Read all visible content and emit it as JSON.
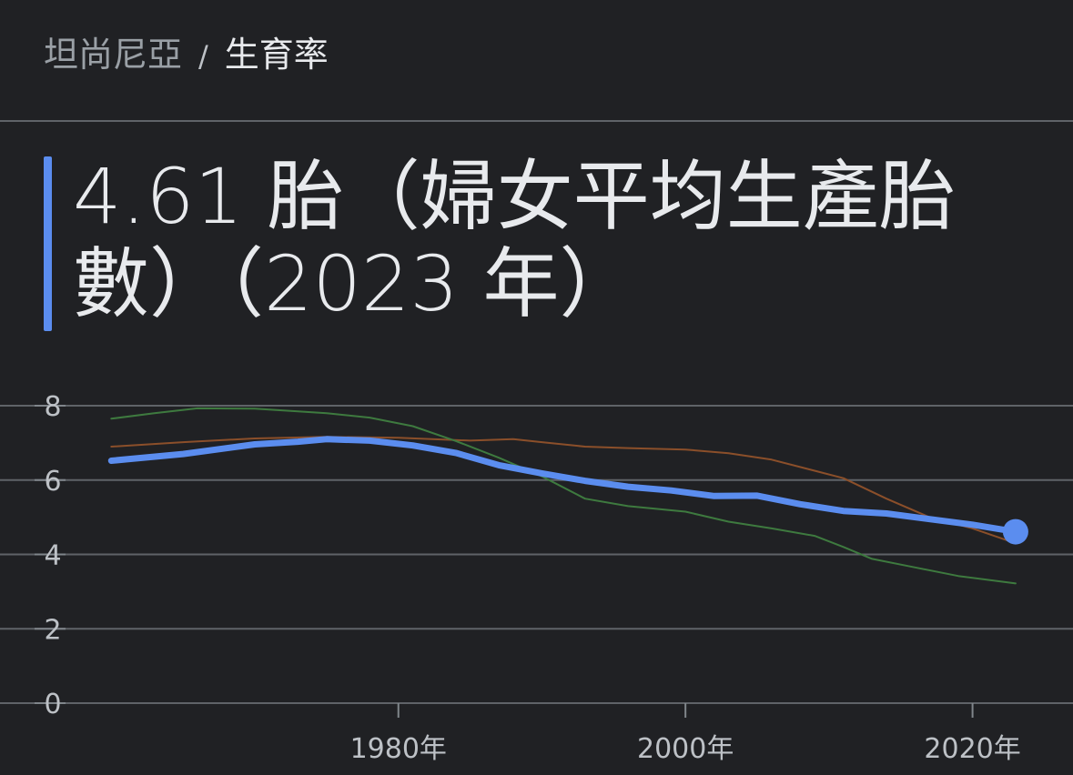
{
  "breadcrumb": {
    "parent": "坦尚尼亞",
    "separator": "/",
    "current": "生育率"
  },
  "headline": {
    "text": "4.61 胎（婦女平均生產胎數）（2023 年）"
  },
  "colors": {
    "background": "#202124",
    "accent": "#5b8def",
    "series_brown": "#8b4f2a",
    "series_green": "#3e7a3f",
    "grid": "#5f6368",
    "tick_text": "#bdc1c6"
  },
  "chart_data": {
    "type": "line",
    "ylim": [
      0,
      8
    ],
    "yticks": [
      "0",
      "2",
      "4",
      "6",
      "8"
    ],
    "xlim": [
      1957,
      2027
    ],
    "xticks": [
      {
        "year": 1980,
        "label": "1980年"
      },
      {
        "year": 2000,
        "label": "2000年"
      },
      {
        "year": 2020,
        "label": "2020年"
      }
    ],
    "grid": true,
    "series": [
      {
        "color": "#8b4f2a",
        "width": 2,
        "x": [
          1960,
          1965,
          1970,
          1975,
          1980,
          1985,
          1988,
          1990,
          1993,
          1996,
          2000,
          2003,
          2006,
          2009,
          2011,
          2014,
          2017,
          2020,
          2023
        ],
        "y": [
          6.9,
          7.02,
          7.12,
          7.16,
          7.14,
          7.06,
          7.1,
          7.02,
          6.9,
          6.86,
          6.82,
          6.72,
          6.55,
          6.25,
          6.05,
          5.5,
          5.0,
          4.7,
          4.3
        ]
      },
      {
        "color": "#3e7a3f",
        "width": 2,
        "x": [
          1960,
          1963,
          1966,
          1970,
          1975,
          1978,
          1981,
          1984,
          1987,
          1990,
          1993,
          1996,
          2000,
          2003,
          2006,
          2009,
          2011,
          2013,
          2016,
          2019,
          2023
        ],
        "y": [
          7.65,
          7.8,
          7.93,
          7.92,
          7.8,
          7.68,
          7.45,
          7.05,
          6.6,
          6.1,
          5.5,
          5.3,
          5.15,
          4.88,
          4.7,
          4.5,
          4.2,
          3.88,
          3.65,
          3.42,
          3.22
        ]
      },
      {
        "color": "#5b8def",
        "width": 7,
        "endpoint": true,
        "x": [
          1960,
          1965,
          1970,
          1973,
          1975,
          1978,
          1981,
          1984,
          1987,
          1990,
          1993,
          1996,
          1999,
          2002,
          2005,
          2008,
          2011,
          2014,
          2017,
          2020,
          2023
        ],
        "y": [
          6.52,
          6.7,
          6.96,
          7.03,
          7.1,
          7.06,
          6.93,
          6.73,
          6.4,
          6.18,
          5.98,
          5.82,
          5.72,
          5.57,
          5.58,
          5.35,
          5.17,
          5.1,
          4.95,
          4.8,
          4.61
        ]
      }
    ]
  }
}
